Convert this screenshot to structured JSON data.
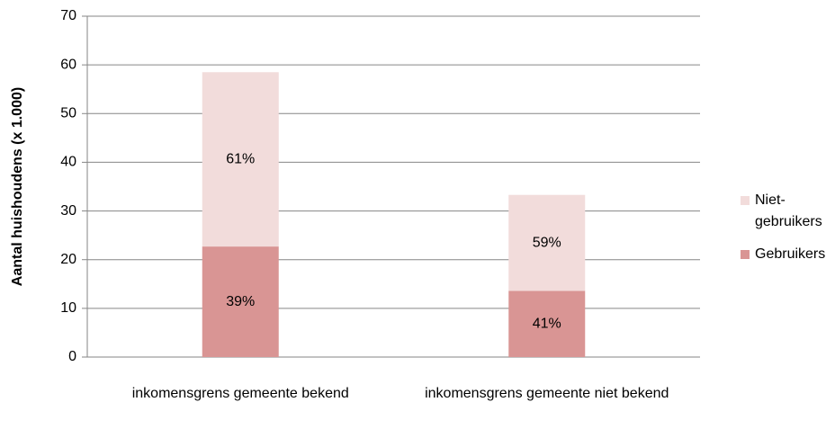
{
  "chart_data": {
    "type": "stacked_bar",
    "ylabel": "Aantal huishoudens (x 1.000)",
    "categories": [
      "inkomensgrens gemeente bekend",
      "inkomensgrens gemeente niet bekend"
    ],
    "series": [
      {
        "name": "Gebruikers",
        "color": "#d99594",
        "values": [
          22.7,
          13.6
        ],
        "labels": [
          "39%",
          "41%"
        ]
      },
      {
        "name": "Niet-gebruikers",
        "color": "#f2dcdb",
        "values": [
          35.8,
          19.7
        ],
        "labels": [
          "61%",
          "59%"
        ]
      }
    ],
    "ylim": [
      0,
      70
    ],
    "yticks": [
      0,
      10,
      20,
      30,
      40,
      50,
      60,
      70
    ],
    "grid": true,
    "legend": "right"
  }
}
